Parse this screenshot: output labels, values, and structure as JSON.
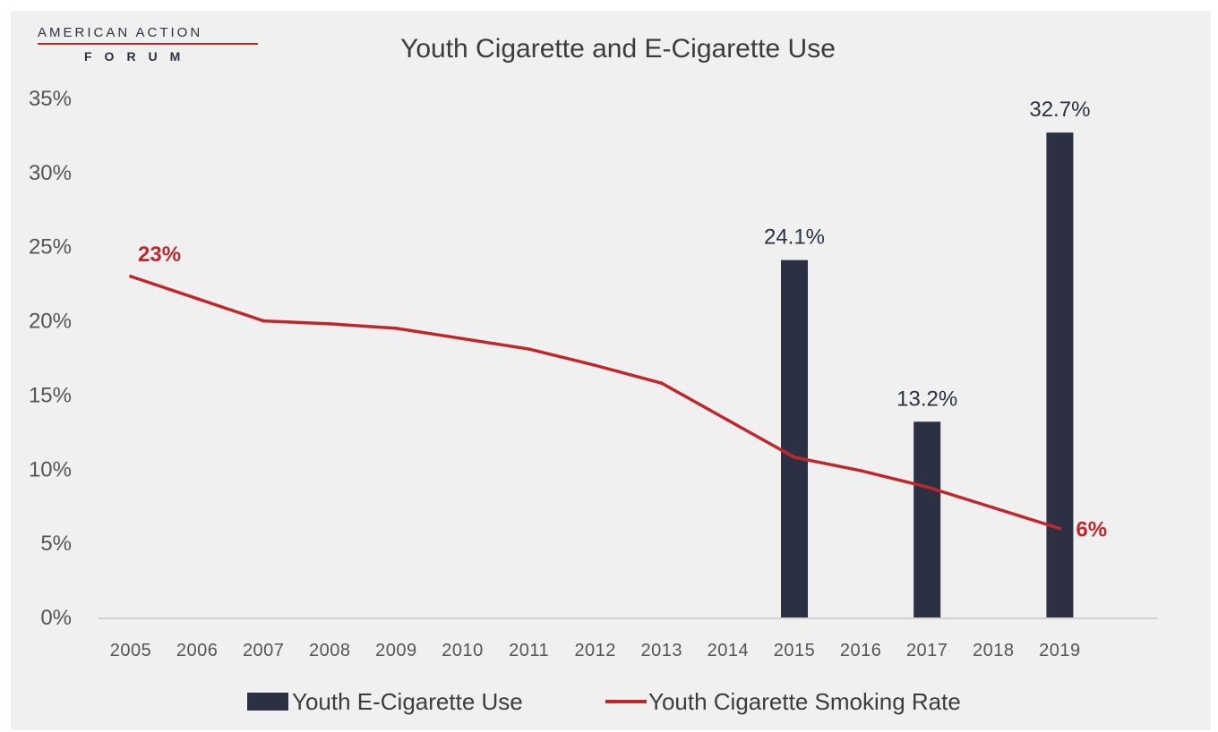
{
  "logo": {
    "line1": "AMERICAN ACTION",
    "line2": "FORUM"
  },
  "colors": {
    "bar": "#2b3142",
    "line": "#c0272d",
    "axis": "#c8c8c8",
    "logo_rule": "#c0272d"
  },
  "chart_data": {
    "type": "bar",
    "title": "Youth Cigarette and E-Cigarette Use",
    "xlabel": "",
    "ylabel": "",
    "ylim": [
      0,
      35
    ],
    "y_ticks": [
      0,
      5,
      10,
      15,
      20,
      25,
      30,
      35
    ],
    "y_tick_suffix": "%",
    "grid": false,
    "legend_placement": "bottom",
    "categories": [
      "2005",
      "2006",
      "2007",
      "2008",
      "2009",
      "2010",
      "2011",
      "2012",
      "2013",
      "2014",
      "2015",
      "2016",
      "2017",
      "2018",
      "2019"
    ],
    "series": [
      {
        "name": "Youth E-Cigarette Use",
        "type": "bar",
        "color": "#2b3142",
        "values": [
          null,
          null,
          null,
          null,
          null,
          null,
          null,
          null,
          null,
          null,
          24.1,
          null,
          13.2,
          null,
          32.7
        ],
        "labels": {
          "2015": "24.1%",
          "2017": "13.2%",
          "2019": "32.7%"
        }
      },
      {
        "name": "Youth Cigarette Smoking Rate",
        "type": "line",
        "color": "#c0272d",
        "values": [
          23,
          21.5,
          20,
          19.8,
          19.5,
          18.8,
          18.1,
          17,
          15.8,
          13.3,
          10.8,
          9.9,
          8.8,
          7.4,
          6
        ],
        "labels": {
          "2005": "23%",
          "2019": "6%"
        }
      }
    ]
  }
}
